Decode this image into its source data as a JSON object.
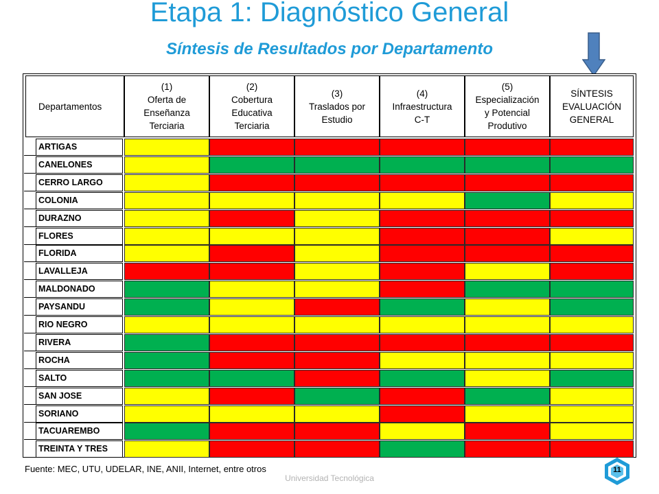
{
  "title": "Etapa 1: Diagnóstico General",
  "subtitle": "Síntesis de Resultados por Departamento",
  "colors": {
    "G": "#00b050",
    "Y": "#ffff00",
    "R": "#ff0000",
    "title": "#1f9bd7",
    "arrow": "#4f81bd"
  },
  "headers": [
    "Departamentos",
    "(1)\nOferta de\nEnseñanza\nTerciaria",
    "(2)\nCobertura\nEducativa\nTerciaria",
    "(3)\nTraslados por\nEstudio",
    "(4)\nInfraestructura\nC-T",
    "(5)\nEspecialización\ny Potencial\nProdutivo",
    "SÍNTESIS\nEVALUACIÓN\nGENERAL"
  ],
  "rows": [
    {
      "name": "ARTIGAS",
      "ratings": [
        "Y",
        "R",
        "R",
        "R",
        "R",
        "R"
      ]
    },
    {
      "name": "CANELONES",
      "ratings": [
        "Y",
        "G",
        "G",
        "G",
        "G",
        "G"
      ]
    },
    {
      "name": "CERRO LARGO",
      "ratings": [
        "Y",
        "R",
        "R",
        "R",
        "R",
        "R"
      ]
    },
    {
      "name": "COLONIA",
      "ratings": [
        "Y",
        "Y",
        "Y",
        "Y",
        "G",
        "Y"
      ]
    },
    {
      "name": "DURAZNO",
      "ratings": [
        "Y",
        "R",
        "Y",
        "R",
        "R",
        "R"
      ]
    },
    {
      "name": "FLORES",
      "ratings": [
        "Y",
        "Y",
        "Y",
        "R",
        "R",
        "Y"
      ]
    },
    {
      "name": "FLORIDA",
      "ratings": [
        "Y",
        "R",
        "Y",
        "R",
        "R",
        "R"
      ]
    },
    {
      "name": "LAVALLEJA",
      "ratings": [
        "R",
        "R",
        "Y",
        "R",
        "Y",
        "R"
      ]
    },
    {
      "name": "MALDONADO",
      "ratings": [
        "G",
        "Y",
        "Y",
        "R",
        "G",
        "G"
      ]
    },
    {
      "name": "PAYSANDU",
      "ratings": [
        "G",
        "Y",
        "R",
        "G",
        "Y",
        "G"
      ]
    },
    {
      "name": "RIO NEGRO",
      "ratings": [
        "Y",
        "Y",
        "Y",
        "Y",
        "Y",
        "Y"
      ]
    },
    {
      "name": "RIVERA",
      "ratings": [
        "G",
        "R",
        "R",
        "R",
        "R",
        "R"
      ]
    },
    {
      "name": "ROCHA",
      "ratings": [
        "G",
        "R",
        "R",
        "Y",
        "Y",
        "Y"
      ]
    },
    {
      "name": "SALTO",
      "ratings": [
        "G",
        "G",
        "R",
        "G",
        "Y",
        "G"
      ]
    },
    {
      "name": "SAN JOSE",
      "ratings": [
        "Y",
        "R",
        "G",
        "R",
        "G",
        "Y"
      ]
    },
    {
      "name": "SORIANO",
      "ratings": [
        "Y",
        "Y",
        "Y",
        "R",
        "Y",
        "Y"
      ]
    },
    {
      "name": "TACUAREMBO",
      "ratings": [
        "G",
        "R",
        "R",
        "Y",
        "R",
        "Y"
      ]
    },
    {
      "name": "TREINTA Y TRES",
      "ratings": [
        "Y",
        "R",
        "R",
        "G",
        "R",
        "R"
      ]
    }
  ],
  "source": "Fuente: MEC, UTU, UDELAR, INE, ANII, Internet, entre otros",
  "footer": "Universidad Tecnológica",
  "page_number": "11",
  "arrow_icon": "down-arrow-icon",
  "logo_icon": "hexagon-logo-icon"
}
